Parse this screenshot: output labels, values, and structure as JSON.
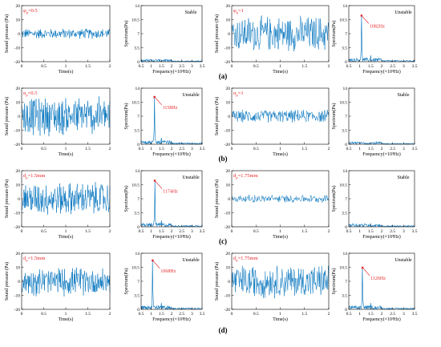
{
  "figure": {
    "row_labels": [
      "(a)",
      "(b)",
      "(c)",
      "(d)"
    ],
    "colors": {
      "signal": "#0072bd",
      "annotation": "#e6262a",
      "axis": "#000000"
    }
  },
  "axes_text": {
    "time": {
      "xlabel": "Time(s)",
      "ylabel": "Sound pressure (Pa)",
      "xticks": [
        "0",
        "0.5",
        "1",
        "1.5",
        "2"
      ],
      "yticks": [
        "-20",
        "-10",
        "0",
        "10",
        "20"
      ]
    },
    "spectrum": {
      "xlabel": "Frequency(×10³Hz)",
      "ylabel": "Spectrum(Pa)",
      "xticks": [
        "0.5",
        "1",
        "1.5",
        "2",
        "2.5",
        "3",
        "3.5"
      ],
      "yticks": [
        "0",
        "3.5",
        "7",
        "10.5",
        "14"
      ]
    }
  },
  "chart_data": [
    {
      "type": "line",
      "row": "a",
      "col": 0,
      "panel": "time",
      "param": "φ",
      "param_sub": "p",
      "param_value": "=0.5",
      "amplitude": 4,
      "xlim": [
        0,
        2
      ],
      "ylim": [
        -20,
        20
      ]
    },
    {
      "type": "line",
      "row": "a",
      "col": 1,
      "panel": "spectrum",
      "status": "Stable",
      "peak_freq_khz": null,
      "peak_value": 0.6,
      "xlim": [
        0.5,
        3.5
      ],
      "ylim": [
        0,
        14
      ]
    },
    {
      "type": "line",
      "row": "a",
      "col": 2,
      "panel": "time",
      "param": "φ",
      "param_sub": "p",
      "param_value": "=1",
      "amplitude": 14,
      "xlim": [
        0,
        2
      ],
      "ylim": [
        -20,
        20
      ]
    },
    {
      "type": "line",
      "row": "a",
      "col": 3,
      "panel": "spectrum",
      "status": "Unstable",
      "peak_freq_khz": 1.082,
      "peak_label": "1082Hz",
      "peak_value": 11.5,
      "xlim": [
        0.5,
        3.5
      ],
      "ylim": [
        0,
        14
      ]
    },
    {
      "type": "line",
      "row": "b",
      "col": 0,
      "panel": "time",
      "param": "α",
      "param_sub": "p",
      "param_value": "=0.5",
      "amplitude": 15,
      "xlim": [
        0,
        2
      ],
      "ylim": [
        -20,
        20
      ]
    },
    {
      "type": "line",
      "row": "b",
      "col": 1,
      "panel": "spectrum",
      "status": "Unstable",
      "peak_freq_khz": 1.158,
      "peak_label": "1158Hz",
      "peak_value": 11.8,
      "xlim": [
        0.5,
        3.5
      ],
      "ylim": [
        0,
        14
      ]
    },
    {
      "type": "line",
      "row": "b",
      "col": 2,
      "panel": "time",
      "param": "α",
      "param_sub": "p",
      "param_value": "=1",
      "amplitude": 5,
      "xlim": [
        0,
        2
      ],
      "ylim": [
        -20,
        20
      ]
    },
    {
      "type": "line",
      "row": "b",
      "col": 3,
      "panel": "spectrum",
      "status": "Stable",
      "peak_freq_khz": null,
      "peak_value": 0.6,
      "xlim": [
        0.5,
        3.5
      ],
      "ylim": [
        0,
        14
      ]
    },
    {
      "type": "line",
      "row": "c",
      "col": 0,
      "panel": "time",
      "param": "d",
      "param_sub": "p",
      "param_value": "=1.5mm",
      "amplitude": 13,
      "xlim": [
        0,
        2
      ],
      "ylim": [
        -20,
        20
      ]
    },
    {
      "type": "line",
      "row": "c",
      "col": 1,
      "panel": "spectrum",
      "status": "Unstable",
      "peak_freq_khz": 1.174,
      "peak_label": "1174Hz",
      "peak_value": 11.5,
      "xlim": [
        0.5,
        3.5
      ],
      "ylim": [
        0,
        14
      ]
    },
    {
      "type": "line",
      "row": "c",
      "col": 2,
      "panel": "time",
      "param": "d",
      "param_sub": "p",
      "param_value": "=1.75mm",
      "amplitude": 3,
      "xlim": [
        0,
        2
      ],
      "ylim": [
        -20,
        20
      ]
    },
    {
      "type": "line",
      "row": "c",
      "col": 3,
      "panel": "spectrum",
      "status": "Stable",
      "peak_freq_khz": null,
      "peak_value": 0.8,
      "xlim": [
        0.5,
        3.5
      ],
      "ylim": [
        0,
        14
      ]
    },
    {
      "type": "line",
      "row": "d",
      "col": 0,
      "panel": "time",
      "param": "d",
      "param_sub": "p",
      "param_value": "=1.5mm",
      "amplitude": 11,
      "xlim": [
        0,
        2
      ],
      "ylim": [
        -20,
        20
      ]
    },
    {
      "type": "line",
      "row": "d",
      "col": 1,
      "panel": "spectrum",
      "status": "Unstable",
      "peak_freq_khz": 1.068,
      "peak_label": "1068Hz",
      "peak_value": 12.2,
      "xlim": [
        0.5,
        3.5
      ],
      "ylim": [
        0,
        14
      ]
    },
    {
      "type": "line",
      "row": "d",
      "col": 2,
      "panel": "time",
      "param": "d",
      "param_sub": "p",
      "param_value": "=1.75mm",
      "amplitude": 13,
      "xlim": [
        0,
        2
      ],
      "ylim": [
        -20,
        20
      ]
    },
    {
      "type": "line",
      "row": "d",
      "col": 3,
      "panel": "spectrum",
      "status": "Unstable",
      "peak_freq_khz": 1.126,
      "peak_label": "1126Hz",
      "peak_value": 10.4,
      "xlim": [
        0.5,
        3.5
      ],
      "ylim": [
        0,
        14
      ]
    }
  ]
}
